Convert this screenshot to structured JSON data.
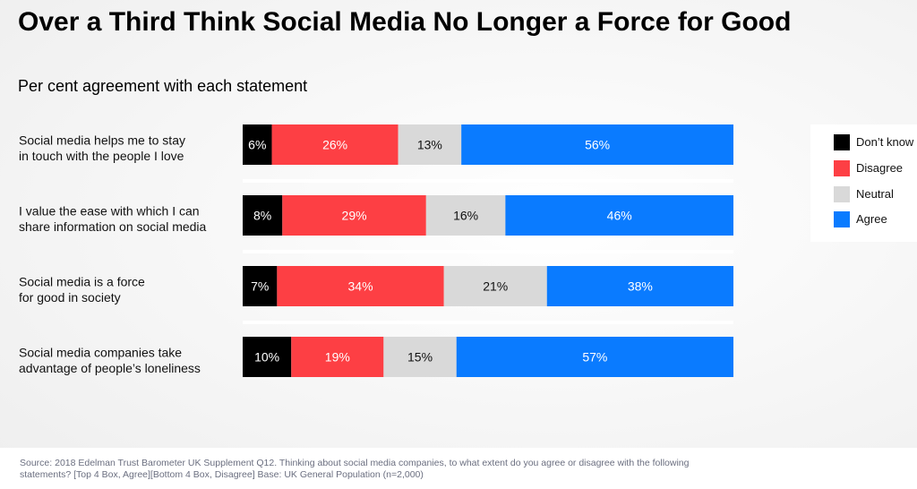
{
  "title": "Over a Third Think Social Media No Longer a Force for Good",
  "subtitle": "Per cent agreement with each statement",
  "footer": "Source: 2018 Edelman Trust Barometer UK Supplement Q12. Thinking about social media companies, to what extent do you agree or disagree with the following statements? [Top 4 Box, Agree][Bottom 4 Box, Disagree] Base: UK General Population (n=2,000)",
  "legend": [
    {
      "label": "Don’t know",
      "color": "#000000"
    },
    {
      "label": "Disagree",
      "color": "#fd3f44"
    },
    {
      "label": "Neutral",
      "color": "#d9d9d9"
    },
    {
      "label": "Agree",
      "color": "#0a7bff"
    }
  ],
  "chart_data": {
    "type": "bar",
    "orientation": "horizontal",
    "stacked": true,
    "categories": [
      [
        "Social media helps me to stay",
        "in touch with the people I love"
      ],
      [
        "I value the ease with which I can",
        "share information on social media"
      ],
      [
        "Social media is a force",
        "for good in society"
      ],
      [
        "Social media companies take",
        "advantage of people’s loneliness"
      ]
    ],
    "series": [
      {
        "name": "Don’t know",
        "color": "#000000",
        "label_color": "#ffffff",
        "values": [
          6,
          8,
          7,
          10
        ]
      },
      {
        "name": "Disagree",
        "color": "#fd3f44",
        "label_color": "#ffffff",
        "values": [
          26,
          29,
          34,
          19
        ]
      },
      {
        "name": "Neutral",
        "color": "#d9d9d9",
        "label_color": "#111111",
        "values": [
          13,
          16,
          21,
          15
        ]
      },
      {
        "name": "Agree",
        "color": "#0a7bff",
        "label_color": "#ffffff",
        "values": [
          56,
          46,
          38,
          57
        ]
      }
    ],
    "value_suffix": "%",
    "legend_position": "right"
  }
}
